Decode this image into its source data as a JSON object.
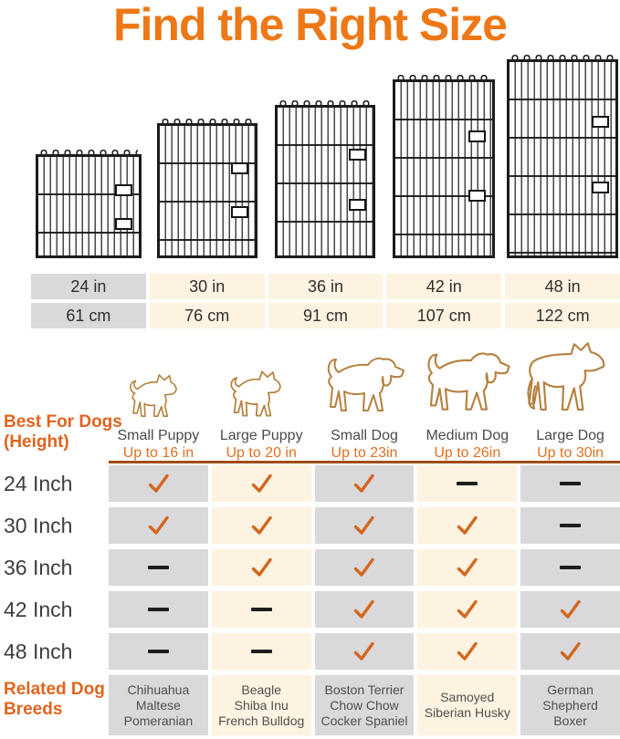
{
  "title": "Find the Right Size",
  "colors": {
    "accent_orange": "#ed7817",
    "label_orange": "#e0701f",
    "divider_brown": "#a04e15",
    "check_orange": "#d2671e",
    "dash_black": "#1d1d1d",
    "cell_gray": "#d9d8da",
    "cell_cream": "#fdf3e0",
    "dog_outline": "#b5813f"
  },
  "crates": {
    "icons": [
      "crate-24in-icon",
      "crate-30in-icon",
      "crate-36in-icon",
      "crate-42in-icon",
      "crate-48in-icon"
    ]
  },
  "size_table": {
    "columns": [
      {
        "inches": "24 in",
        "cm": "61 cm"
      },
      {
        "inches": "30 in",
        "cm": "76 cm"
      },
      {
        "inches": "36 in",
        "cm": "91 cm"
      },
      {
        "inches": "42 in",
        "cm": "107 cm"
      },
      {
        "inches": "48 in",
        "cm": "122 cm"
      }
    ]
  },
  "dogs": {
    "header": {
      "line1": "Best For Dogs",
      "line2": "(Height)"
    },
    "columns": [
      {
        "icon": "small-puppy-icon",
        "name": "Small Puppy",
        "height": "Up to 16 in"
      },
      {
        "icon": "large-puppy-icon",
        "name": "Large Puppy",
        "height": "Up to 20 in"
      },
      {
        "icon": "small-dog-icon",
        "name": "Small Dog",
        "height": "Up to 23in"
      },
      {
        "icon": "medium-dog-icon",
        "name": "Medium Dog",
        "height": "Up to 26in"
      },
      {
        "icon": "large-dog-icon",
        "name": "Large Dog",
        "height": "Up to 30in"
      }
    ]
  },
  "matrix": {
    "row_labels": [
      "24 Inch",
      "30 Inch",
      "36 Inch",
      "42 Inch",
      "48 Inch"
    ],
    "cells": [
      [
        "check",
        "check",
        "check",
        "dash",
        "dash"
      ],
      [
        "check",
        "check",
        "check",
        "check",
        "dash"
      ],
      [
        "dash",
        "check",
        "check",
        "check",
        "dash"
      ],
      [
        "dash",
        "dash",
        "check",
        "check",
        "check"
      ],
      [
        "dash",
        "dash",
        "check",
        "check",
        "check"
      ]
    ]
  },
  "breeds": {
    "header": {
      "line1": "Related Dog",
      "line2": "Breeds"
    },
    "columns": [
      {
        "lines": [
          "Chihuahua",
          "Maltese",
          "Pomeranian"
        ]
      },
      {
        "lines": [
          "Beagle",
          "Shiba Inu",
          "French Bulldog"
        ]
      },
      {
        "lines": [
          "Boston Terrier",
          "Chow Chow",
          "Cocker Spaniel"
        ]
      },
      {
        "lines": [
          "Samoyed",
          "Siberian Husky"
        ]
      },
      {
        "lines": [
          "German",
          "Shepherd",
          "Boxer"
        ]
      }
    ]
  },
  "chart_data": {
    "type": "table",
    "title": "Find the Right Size",
    "crate_sizes": [
      {
        "inches": 24,
        "cm": 61
      },
      {
        "inches": 30,
        "cm": 76
      },
      {
        "inches": 36,
        "cm": 91
      },
      {
        "inches": 42,
        "cm": 107
      },
      {
        "inches": 48,
        "cm": 122
      }
    ],
    "row_labels": [
      "24 Inch",
      "30 Inch",
      "36 Inch",
      "42 Inch",
      "48 Inch"
    ],
    "column_labels": [
      "Small Puppy Up to 16 in",
      "Large Puppy Up to 20 in",
      "Small Dog Up to 23in",
      "Medium Dog Up to 26in",
      "Large Dog Up to 30in"
    ],
    "suitability_matrix": [
      [
        1,
        1,
        1,
        0,
        0
      ],
      [
        1,
        1,
        1,
        1,
        0
      ],
      [
        0,
        1,
        1,
        1,
        0
      ],
      [
        0,
        0,
        1,
        1,
        1
      ],
      [
        0,
        0,
        1,
        1,
        1
      ]
    ],
    "related_breeds": [
      [
        "Chihuahua",
        "Maltese",
        "Pomeranian"
      ],
      [
        "Beagle",
        "Shiba Inu",
        "French Bulldog"
      ],
      [
        "Boston Terrier",
        "Chow Chow",
        "Cocker Spaniel"
      ],
      [
        "Samoyed",
        "Siberian Husky"
      ],
      [
        "German Shepherd",
        "Boxer"
      ]
    ]
  }
}
